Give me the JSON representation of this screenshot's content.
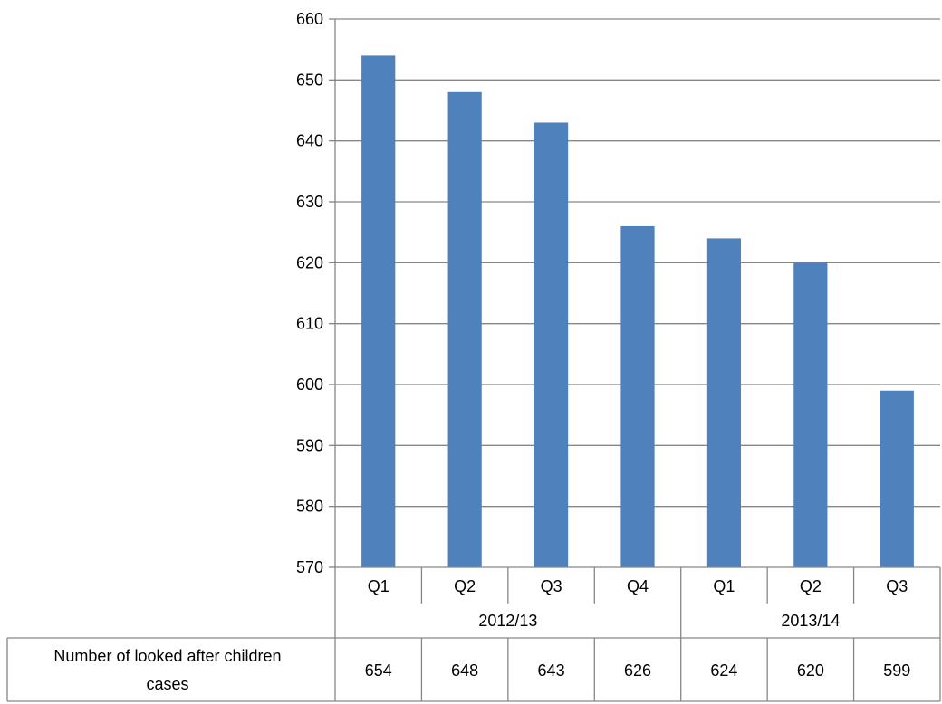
{
  "chart_data": {
    "type": "bar",
    "categories": [
      "Q1",
      "Q2",
      "Q3",
      "Q4",
      "Q1",
      "Q2",
      "Q3"
    ],
    "groups": [
      {
        "label": "2012/13",
        "span": 4
      },
      {
        "label": "2013/14",
        "span": 3
      }
    ],
    "series": [
      {
        "name": "Number of looked after children cases",
        "values": [
          654,
          648,
          643,
          626,
          624,
          620,
          599
        ]
      }
    ],
    "data_table": {
      "row_label_lines": [
        "Number of looked after children",
        "cases"
      ],
      "values": [
        "654",
        "648",
        "643",
        "626",
        "624",
        "620",
        "599"
      ]
    },
    "ylim": [
      570,
      660
    ],
    "ytick_step": 10,
    "grid": true,
    "legend": "none",
    "colors": {
      "bar": "#4f81bd",
      "grid": "#868686",
      "axis": "#868686"
    }
  }
}
